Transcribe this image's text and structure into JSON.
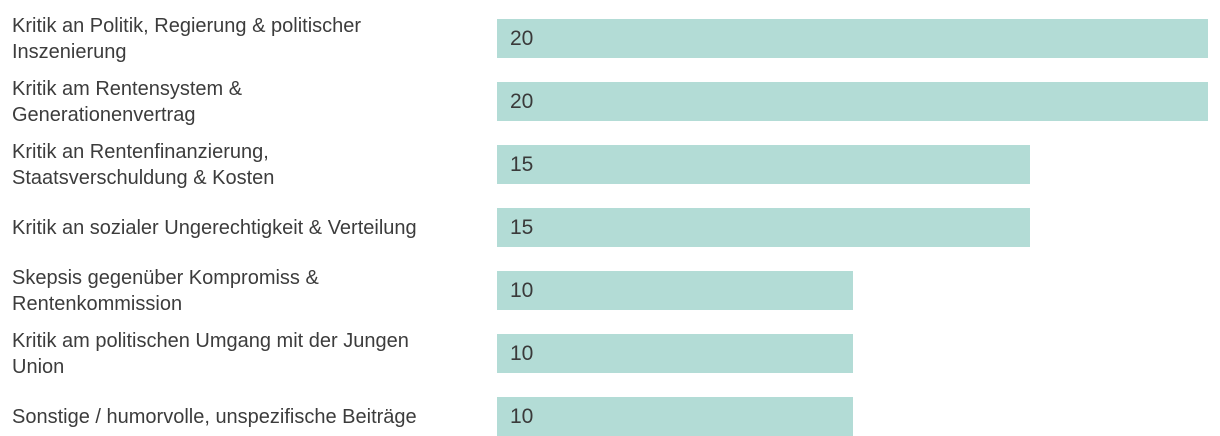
{
  "chart_data": {
    "type": "bar",
    "orientation": "horizontal",
    "title": "",
    "xlabel": "",
    "ylabel": "",
    "xlim": [
      0,
      20
    ],
    "grid": false,
    "legend": null,
    "axes_visible": false,
    "value_labels_position": "inside-start",
    "bar_color": "#b3dcd6",
    "label_color": "#3c3c3c",
    "value_color": "#3a3a3a",
    "background_color": "#ffffff",
    "categories": [
      "Kritik an Politik, Regierung & politischer\nInszenierung",
      "Kritik am Rentensystem &\nGenerationenvertrag",
      "Kritik an Rentenfinanzierung,\nStaatsverschuldung & Kosten",
      "Kritik an sozialer Ungerechtigkeit & Verteilung",
      "Skepsis gegenüber Kompromiss &\nRentenkommission",
      "Kritik am politischen Umgang mit der Jungen\nUnion",
      "Sonstige / humorvolle, unspezifische Beiträge"
    ],
    "values": [
      20,
      20,
      15,
      15,
      10,
      10,
      10
    ]
  }
}
